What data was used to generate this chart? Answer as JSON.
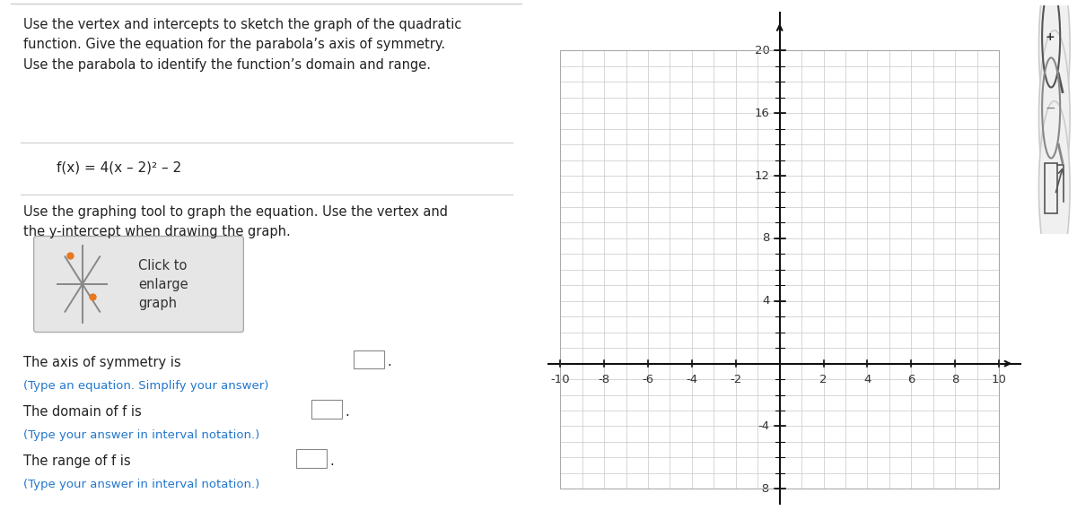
{
  "fig_width": 12.0,
  "fig_height": 5.79,
  "dpi": 100,
  "background_color": "#ffffff",
  "left_panel": {
    "bg_color": "#ffffff",
    "title_lines": [
      "Use the vertex and intercepts to sketch the graph of the quadratic",
      "function. Give the equation for the parabola’s axis of symmetry.",
      "Use the parabola to identify the function’s domain and range."
    ],
    "title_fontsize": 10.5,
    "function_label": "f(x) = 4(x – 2)² – 2",
    "function_fontsize": 11,
    "instruction_lines": [
      "Use the graphing tool to graph the equation. Use the vertex and",
      "the y-intercept when drawing the graph."
    ],
    "instruction_fontsize": 10.5,
    "click_box_text": "Click to\nenlarge\ngraph",
    "answer_color": "#222222",
    "hint_color": "#2277cc",
    "separator_color": "#cccccc"
  },
  "right_panel": {
    "bg_color": "#ffffff",
    "xlim": [
      -10.6,
      11.0
    ],
    "ylim": [
      -9.0,
      22.5
    ],
    "grid_xmin": -10,
    "grid_xmax": 10,
    "grid_ymin": -8,
    "grid_ymax": 20,
    "x_ticks": [
      -10,
      -8,
      -6,
      -4,
      -2,
      2,
      4,
      6,
      8,
      10
    ],
    "y_ticks": [
      -8,
      -4,
      4,
      8,
      12,
      16,
      20
    ],
    "grid_color": "#c8c8c8",
    "grid_linewidth": 0.5,
    "axis_color": "#111111",
    "tick_fontsize": 9.5
  }
}
